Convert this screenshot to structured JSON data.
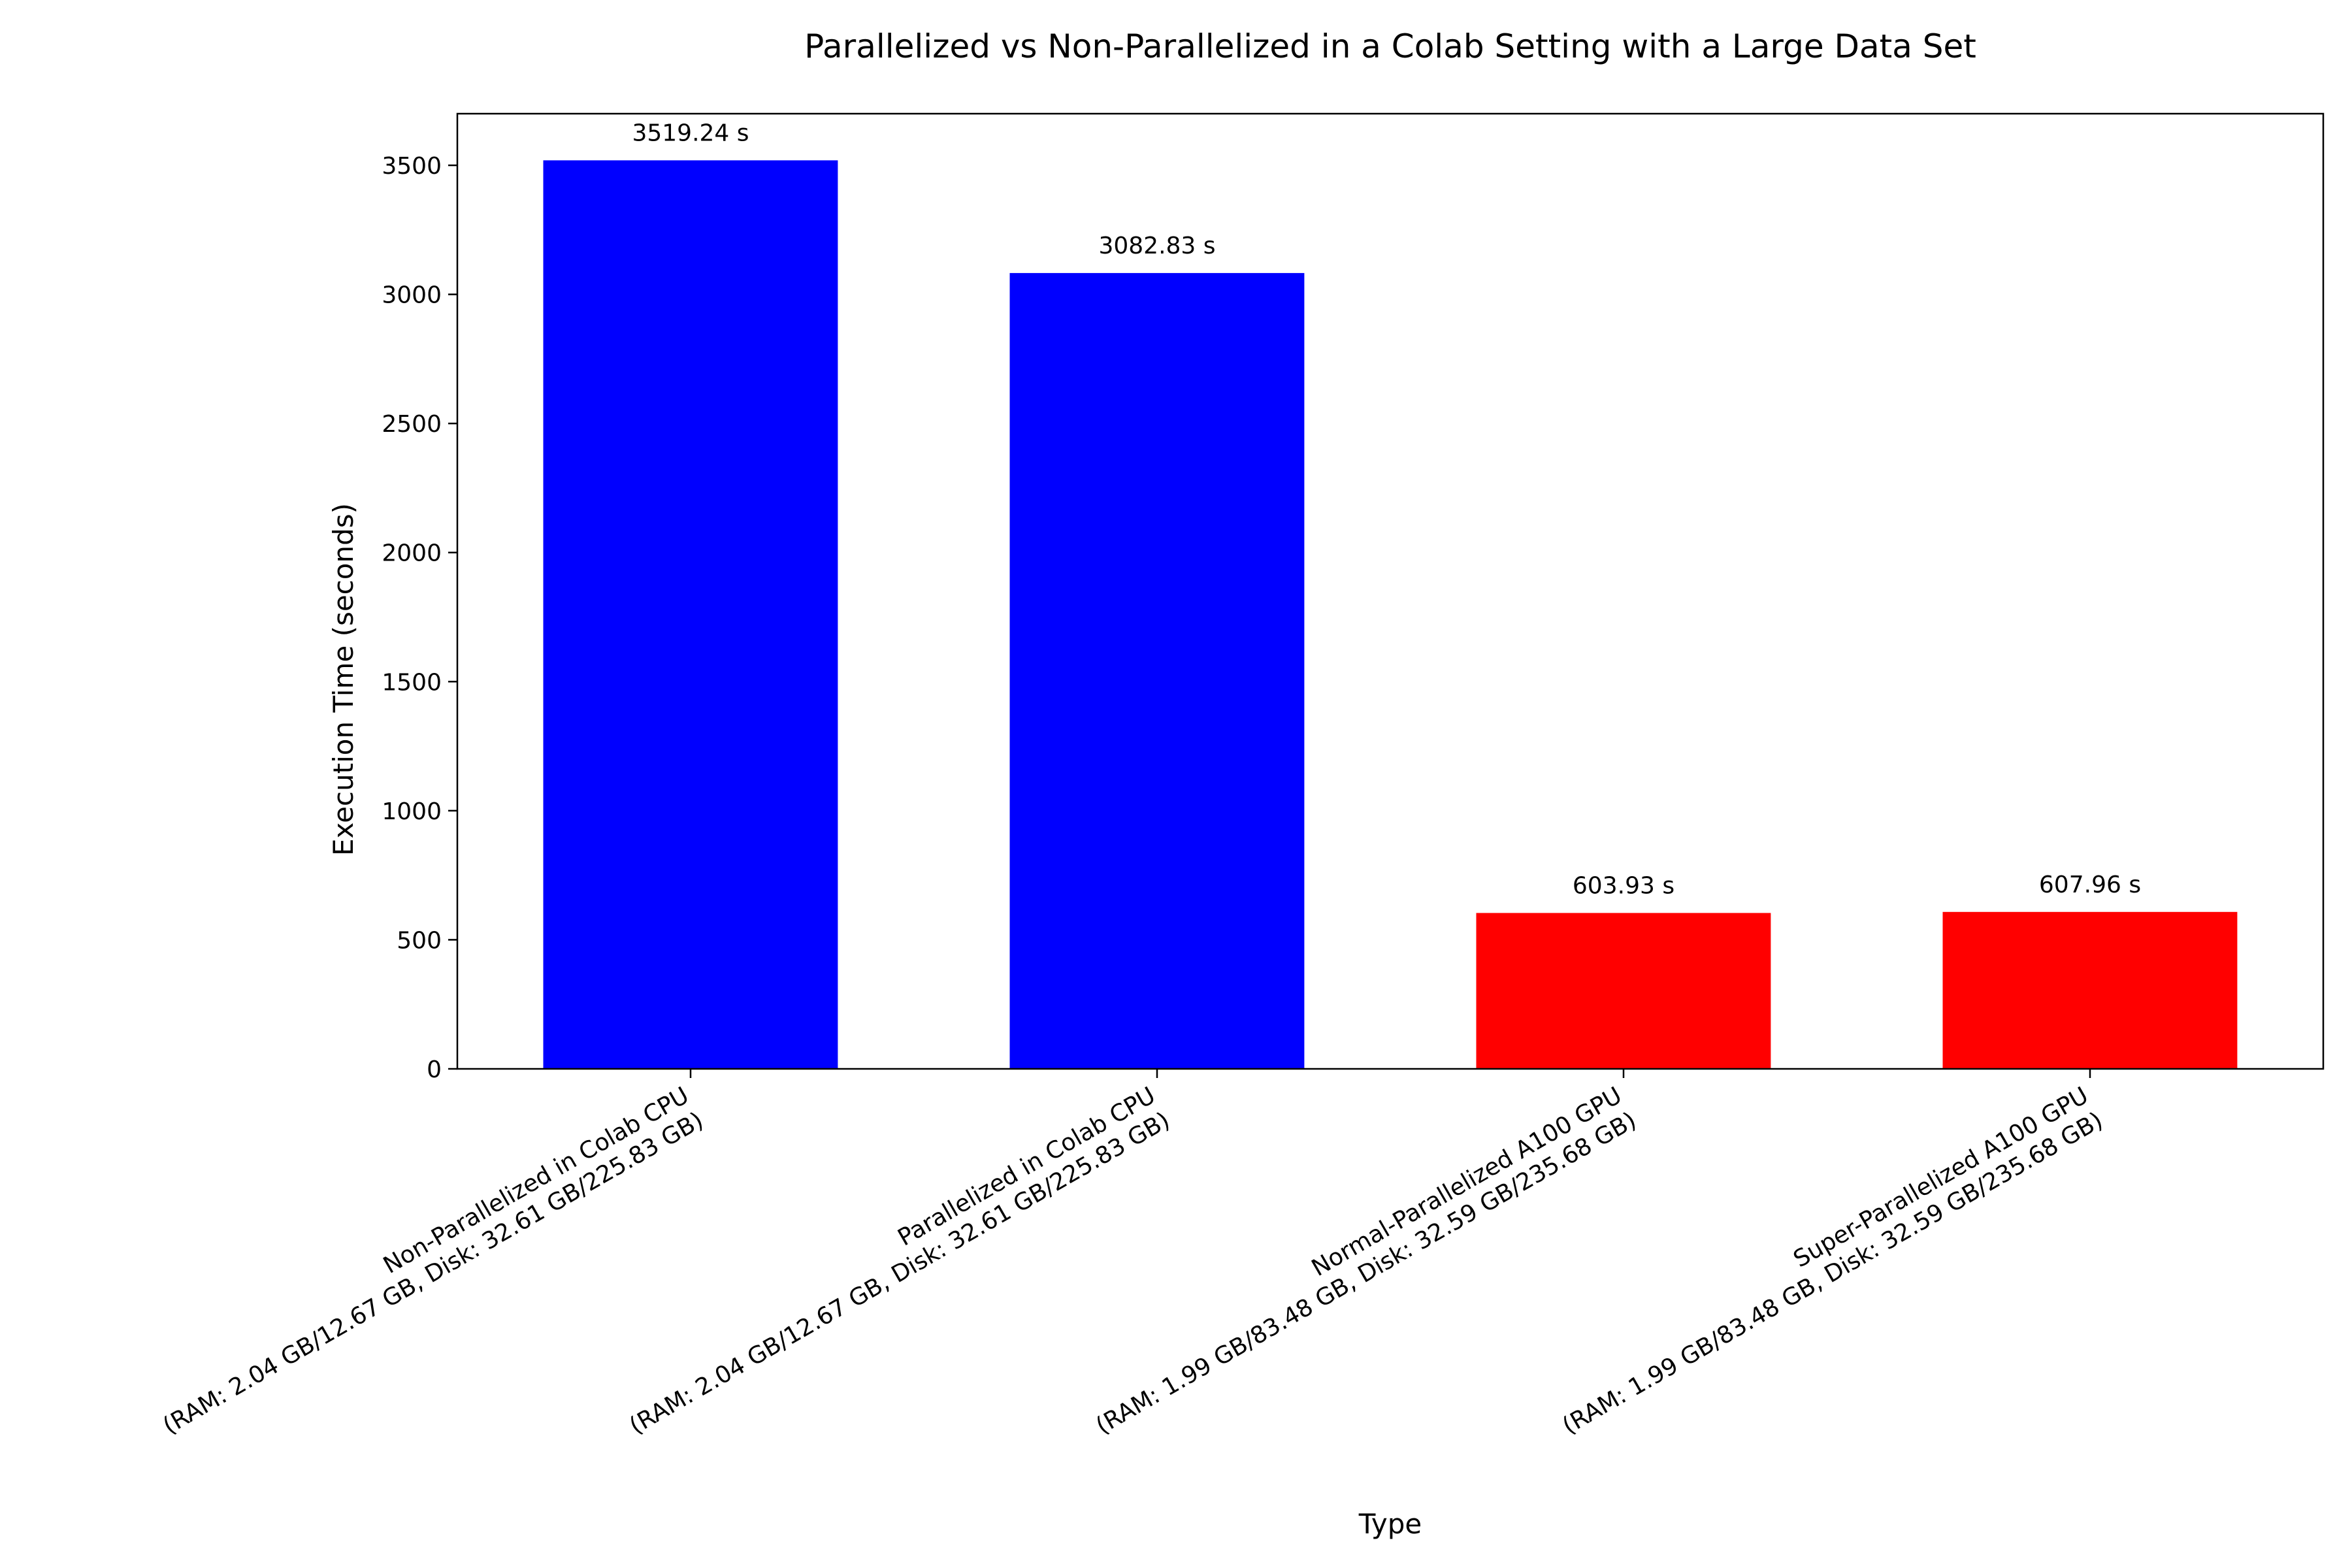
{
  "chart_data": {
    "type": "bar",
    "title": "Parallelized vs Non-Parallelized in a Colab Setting with a Large Data Set",
    "xlabel": "Type",
    "ylabel": "Execution Time (seconds)",
    "ylim": [
      0,
      3700
    ],
    "yticks": [
      0,
      500,
      1000,
      1500,
      2000,
      2500,
      3000,
      3500
    ],
    "grid": false,
    "categories": [
      [
        "Non-Parallelized in Colab CPU",
        "(RAM: 2.04 GB/12.67 GB, Disk: 32.61 GB/225.83 GB)"
      ],
      [
        "Parallelized in Colab CPU",
        "(RAM: 2.04 GB/12.67 GB, Disk: 32.61 GB/225.83 GB)"
      ],
      [
        "Normal-Parallelized A100 GPU",
        "(RAM: 1.99 GB/83.48 GB, Disk: 32.59 GB/235.68 GB)"
      ],
      [
        "Super-Parallelized A100 GPU",
        "(RAM: 1.99 GB/83.48 GB, Disk: 32.59 GB/235.68 GB)"
      ]
    ],
    "values": [
      3519.24,
      3082.83,
      603.93,
      607.96
    ],
    "value_labels": [
      "3519.24 s",
      "3082.83 s",
      "603.93 s",
      "607.96 s"
    ],
    "colors": [
      "#0000ff",
      "#0000ff",
      "#ff0000",
      "#ff0000"
    ]
  }
}
